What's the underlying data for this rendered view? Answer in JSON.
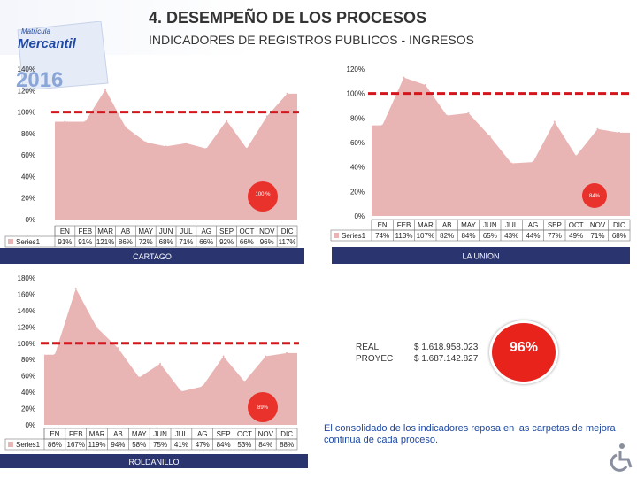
{
  "header": {
    "title": "4. DESEMPEÑO DE LOS PROCESOS",
    "subtitle": "INDICADORES DE REGISTROS PUBLICOS - INGRESOS",
    "logo_line1": "Matrícula",
    "logo_line2": "Mercantil",
    "logo_year": "2016"
  },
  "colors": {
    "area": "#e9b4b4",
    "target_line": "#d3161c",
    "bubble": "#e8231c",
    "navy": "#2a3570",
    "blue": "#1f49a3"
  },
  "chart_data": [
    {
      "type": "area",
      "title": "CARTAGO",
      "categories": [
        "EN",
        "FEB",
        "MAR",
        "AB",
        "MAY",
        "JUN",
        "JUL",
        "AG",
        "SEP",
        "OCT",
        "NOV",
        "DIC"
      ],
      "series": [
        {
          "name": "Series1",
          "values": [
            91,
            91,
            121,
            86,
            72,
            68,
            71,
            66,
            92,
            66,
            96,
            117
          ]
        }
      ],
      "value_labels": [
        "91%",
        "91%",
        "121%",
        "86%",
        "72%",
        "68%",
        "71%",
        "66%",
        "92%",
        "66%",
        "96%",
        "117%"
      ],
      "y_ticks": [
        "0%",
        "20%",
        "40%",
        "60%",
        "80%",
        "100%",
        "120%",
        "140%"
      ],
      "ylim": [
        0,
        140
      ],
      "target": 100,
      "annotation": "100 %"
    },
    {
      "type": "area",
      "title": "LA UNION",
      "categories": [
        "EN",
        "FEB",
        "MAR",
        "AB",
        "MAY",
        "JUN",
        "JUL",
        "AG",
        "SEP",
        "OCT",
        "NOV",
        "DIC"
      ],
      "series": [
        {
          "name": "Series1",
          "values": [
            74,
            113,
            107,
            82,
            84,
            65,
            43,
            44,
            77,
            49,
            71,
            68
          ]
        }
      ],
      "value_labels": [
        "74%",
        "113%",
        "107%",
        "82%",
        "84%",
        "65%",
        "43%",
        "44%",
        "77%",
        "49%",
        "71%",
        "68%"
      ],
      "y_ticks": [
        "0%",
        "20%",
        "40%",
        "60%",
        "80%",
        "100%",
        "120%"
      ],
      "ylim": [
        0,
        120
      ],
      "target": 100,
      "annotation": "84%"
    },
    {
      "type": "area",
      "title": "ROLDANILLO",
      "categories": [
        "EN",
        "FEB",
        "MAR",
        "AB",
        "MAY",
        "JUN",
        "JUL",
        "AG",
        "SEP",
        "OCT",
        "NOV",
        "DIC"
      ],
      "series": [
        {
          "name": "Series1",
          "values": [
            86,
            167,
            119,
            94,
            58,
            75,
            41,
            47,
            84,
            53,
            84,
            88
          ]
        }
      ],
      "value_labels": [
        "86%",
        "167%",
        "119%",
        "94%",
        "58%",
        "75%",
        "41%",
        "47%",
        "84%",
        "53%",
        "84%",
        "88%"
      ],
      "y_ticks": [
        "0%",
        "20%",
        "40%",
        "60%",
        "80%",
        "100%",
        "120%",
        "140%",
        "160%",
        "180%"
      ],
      "ylim": [
        0,
        180
      ],
      "target": 100,
      "annotation": "89%"
    }
  ],
  "financial": {
    "real_label": "REAL",
    "real_value": "$ 1.618.958.023",
    "proyec_label": "PROYEC",
    "proyec_value": "$ 1.687.142.827",
    "percent": "96%"
  },
  "note": "El consolidado de los indicadores reposa en las carpetas de mejora continua de cada proceso."
}
